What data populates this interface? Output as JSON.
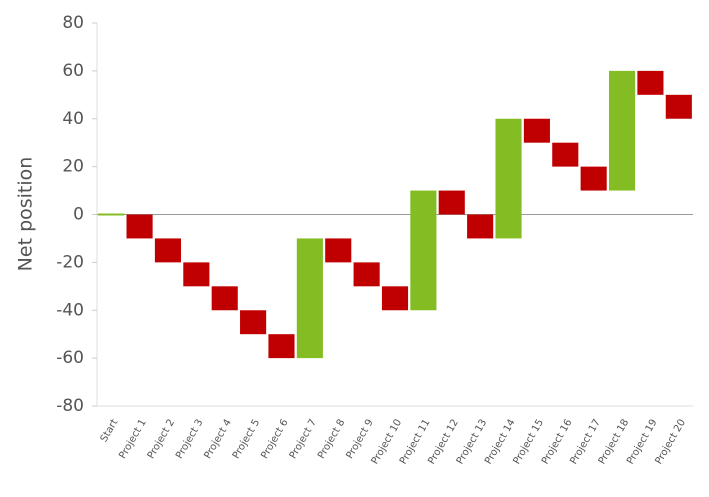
{
  "chart_data": {
    "type": "waterfall",
    "y_label": "Net position",
    "categories": [
      "Start",
      "Project 1",
      "Project 2",
      "Project 3",
      "Project 4",
      "Project 5",
      "Project 6",
      "Project 7",
      "Project 8",
      "Project 9",
      "Project 10",
      "Project 11",
      "Project 12",
      "Project 13",
      "Project 14",
      "Project 15",
      "Project 16",
      "Project 17",
      "Project 18",
      "Project 19",
      "Project 20"
    ],
    "values": [
      0,
      -10,
      -10,
      -10,
      -10,
      -10,
      -10,
      50,
      -10,
      -10,
      -10,
      50,
      -10,
      -10,
      50,
      -10,
      -10,
      -10,
      50,
      -10,
      -10
    ],
    "increase_color": "#84bd23",
    "decrease_color": "#c00000",
    "ylim": [
      -80,
      80
    ],
    "yticks": [
      -80,
      -60,
      -40,
      -20,
      0,
      20,
      40,
      60,
      80
    ]
  }
}
